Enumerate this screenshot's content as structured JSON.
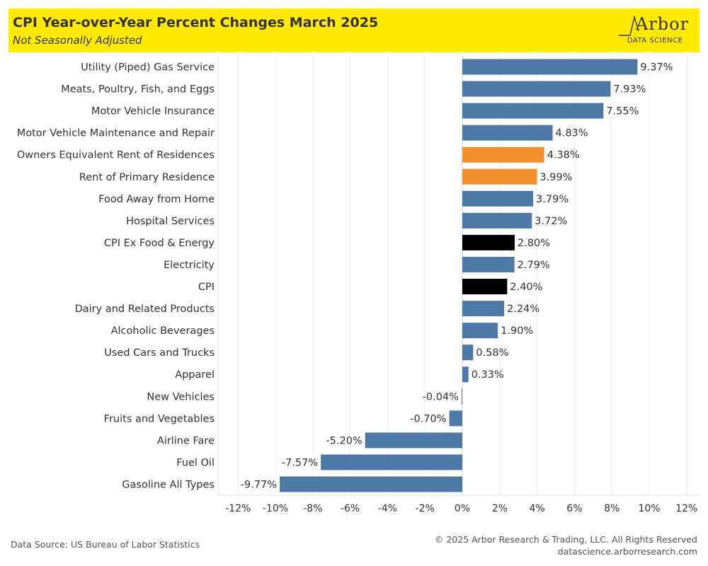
{
  "header": {
    "title": "CPI Year-over-Year Percent Changes March 2025",
    "subtitle": "Not Seasonally Adjusted",
    "logo_word": "Arbor",
    "logo_sub": "DATA SCIENCE",
    "background_color": "#ffea00"
  },
  "footer": {
    "source": "Data Source: US Bureau of Labor Statistics",
    "copyright": "© 2025 Arbor Research & Trading, LLC. All Rights Reserved",
    "website": "datascience.arborresearch.com"
  },
  "colors": {
    "default": "#4e79a7",
    "highlight_rent": "#f28e2b",
    "highlight_cpi": "#000000"
  },
  "chart_data": {
    "type": "bar",
    "orientation": "horizontal",
    "title": "CPI Year-over-Year Percent Changes March 2025",
    "subtitle": "Not Seasonally Adjusted",
    "xlim": [
      -12,
      12
    ],
    "x_ticks": [
      -12,
      -10,
      -8,
      -6,
      -4,
      -2,
      0,
      2,
      4,
      6,
      8,
      10,
      12
    ],
    "x_tick_labels": [
      "-12%",
      "-10%",
      "-8%",
      "-6%",
      "-4%",
      "-2%",
      "0%",
      "2%",
      "4%",
      "6%",
      "8%",
      "10%",
      "12%"
    ],
    "grid": true,
    "categories": [
      "Utility (Piped) Gas Service",
      "Meats, Poultry, Fish, and Eggs",
      "Motor Vehicle Insurance",
      "Motor Vehicle Maintenance and Repair",
      "Owners Equivalent Rent of Residences",
      "Rent of Primary Residence",
      "Food Away from Home",
      "Hospital Services",
      "CPI Ex Food & Energy",
      "Electricity",
      "CPI",
      "Dairy and Related Products",
      "Alcoholic Beverages",
      "Used Cars and Trucks",
      "Apparel",
      "New Vehicles",
      "Fruits and Vegetables",
      "Airline Fare",
      "Fuel Oil",
      "Gasoline All Types"
    ],
    "values": [
      9.37,
      7.93,
      7.55,
      4.83,
      4.38,
      3.99,
      3.79,
      3.72,
      2.8,
      2.79,
      2.4,
      2.24,
      1.9,
      0.58,
      0.33,
      -0.04,
      -0.7,
      -5.2,
      -7.57,
      -9.77
    ],
    "value_labels": [
      "9.37%",
      "7.93%",
      "7.55%",
      "4.83%",
      "4.38%",
      "3.99%",
      "3.79%",
      "3.72%",
      "2.80%",
      "2.79%",
      "2.40%",
      "2.24%",
      "1.90%",
      "0.58%",
      "0.33%",
      "-0.04%",
      "-0.70%",
      "-5.20%",
      "-7.57%",
      "-9.77%"
    ],
    "bar_colors": [
      "#4e79a7",
      "#4e79a7",
      "#4e79a7",
      "#4e79a7",
      "#f28e2b",
      "#f28e2b",
      "#4e79a7",
      "#4e79a7",
      "#000000",
      "#4e79a7",
      "#000000",
      "#4e79a7",
      "#4e79a7",
      "#4e79a7",
      "#4e79a7",
      "#4e79a7",
      "#4e79a7",
      "#4e79a7",
      "#4e79a7",
      "#4e79a7"
    ]
  }
}
